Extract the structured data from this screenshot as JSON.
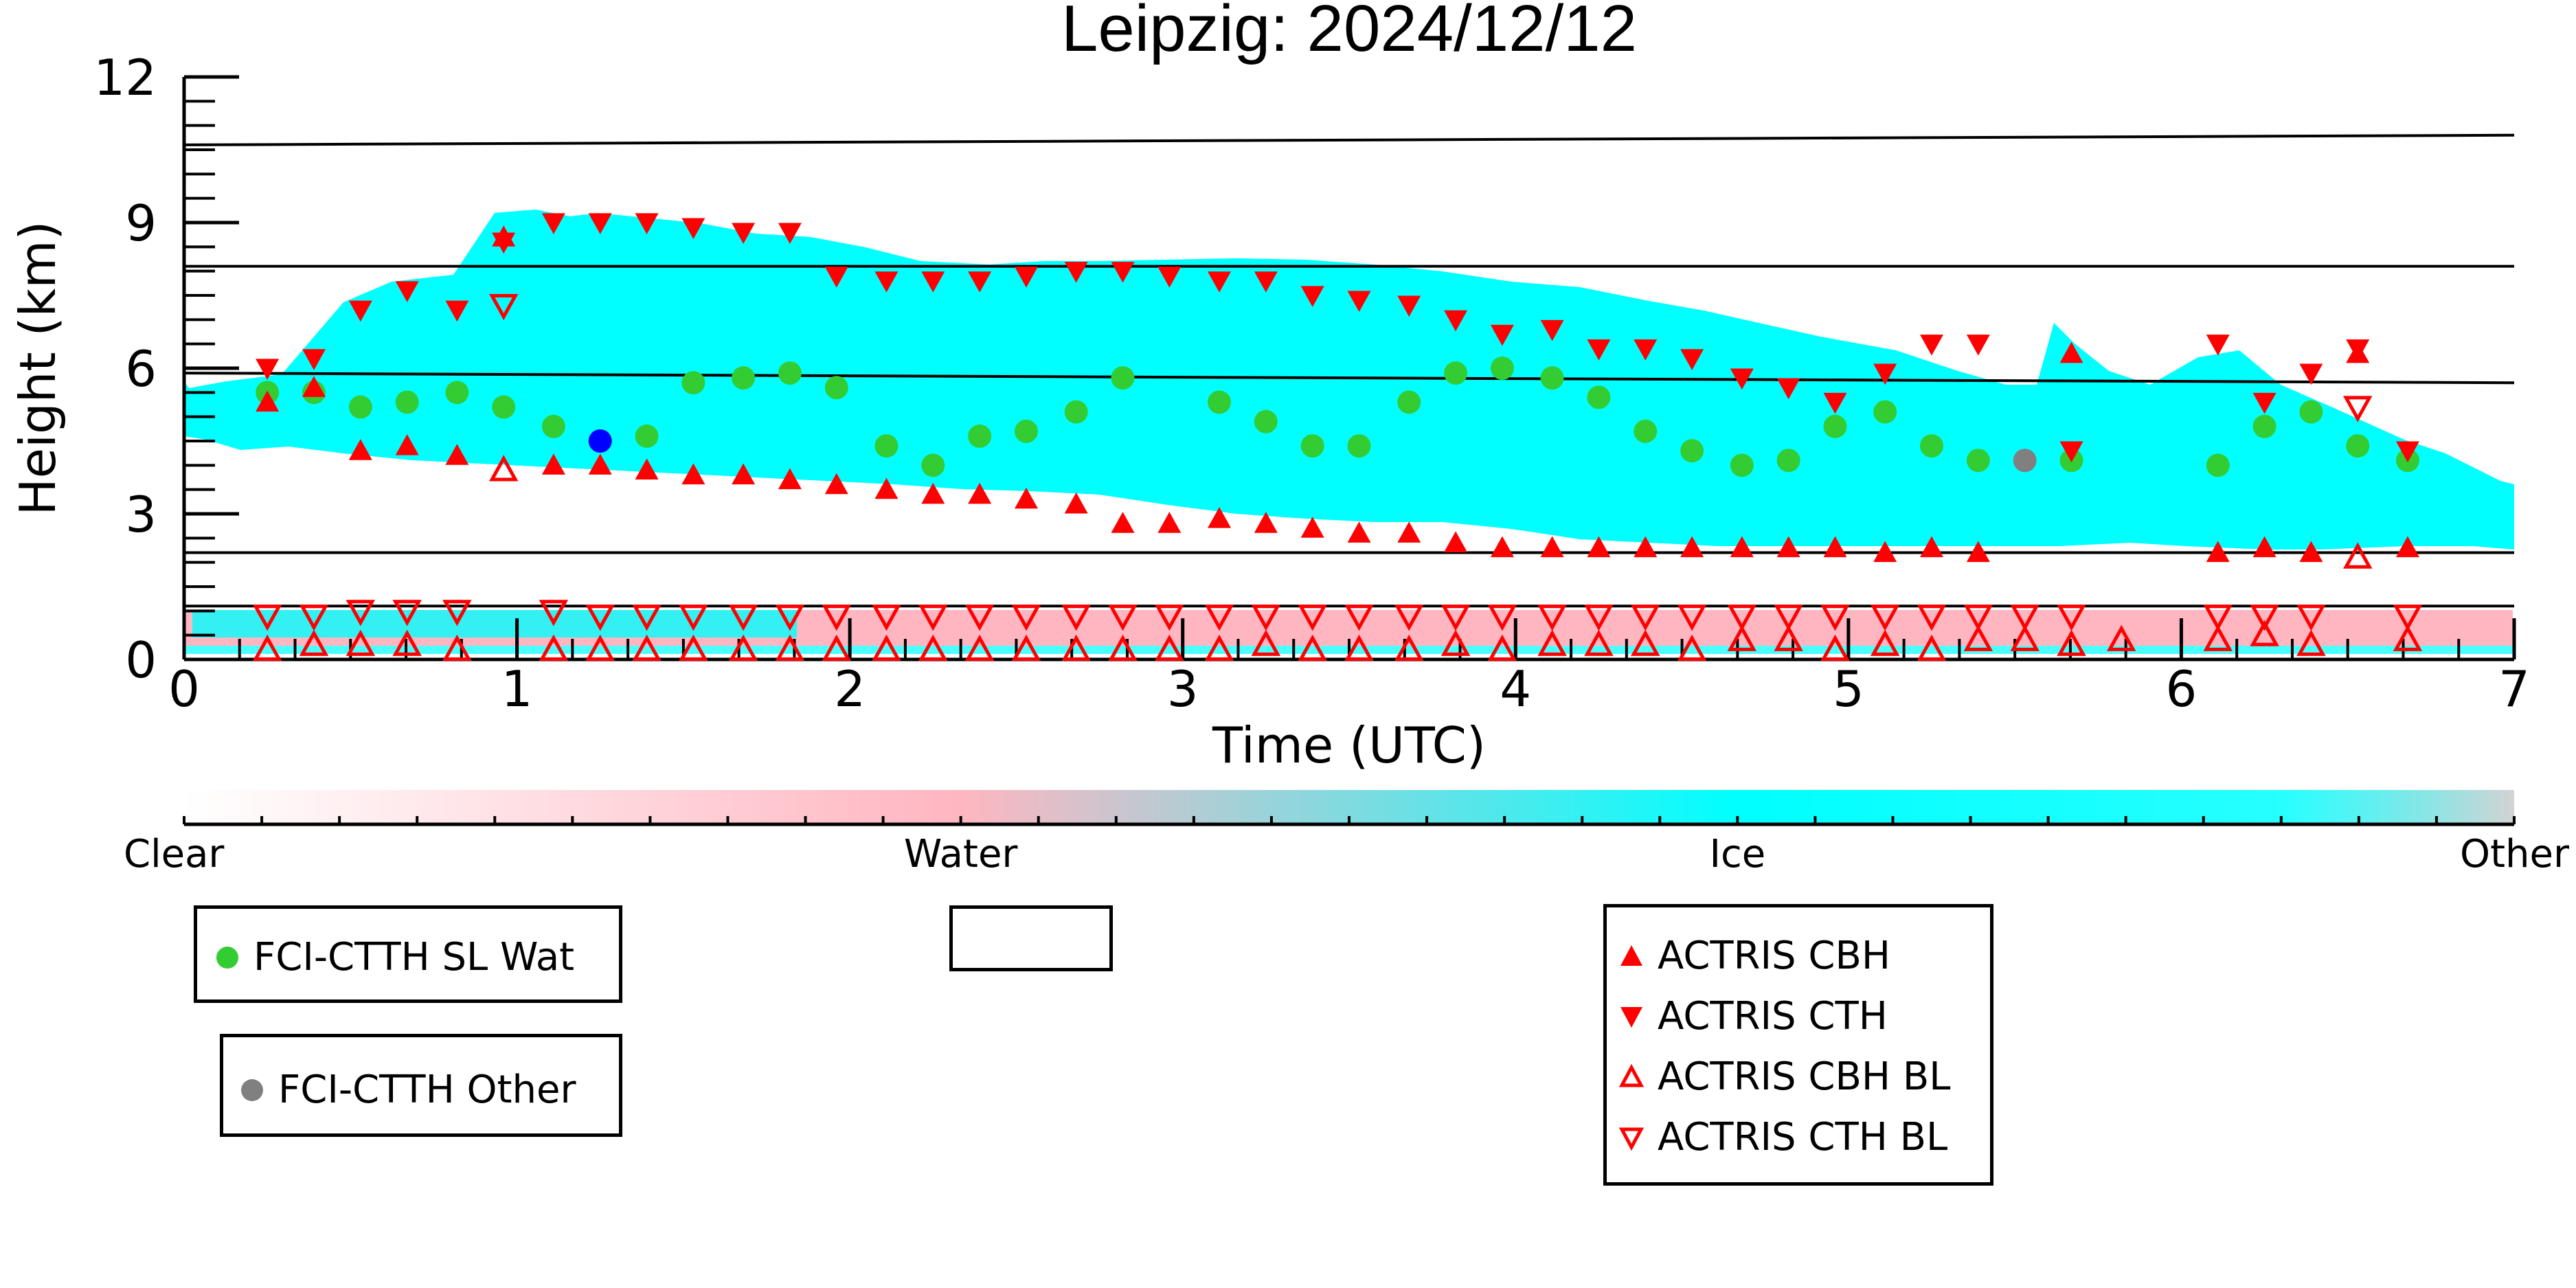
{
  "chart_data": {
    "type": "scatter",
    "title": "Leipzig: 2024/12/12",
    "xlabel": "Time (UTC)",
    "ylabel": "Height (km)",
    "xlim": [
      0,
      7
    ],
    "ylim": [
      0,
      12
    ],
    "x_ticks": [
      "0",
      "1",
      "2",
      "3",
      "4",
      "5",
      "6",
      "7"
    ],
    "y_ticks": [
      "0",
      "3",
      "6",
      "9",
      "12"
    ],
    "colorbar": {
      "labels": [
        "Clear",
        "Water",
        "Ice",
        "Other"
      ],
      "colors": [
        "#ffffff",
        "#ffb6c1",
        "#00ffff",
        "#d3d3d3"
      ]
    },
    "reference_lines": [
      {
        "values": [
          10.6,
          10.8
        ]
      },
      {
        "values": [
          8.1,
          8.1
        ]
      },
      {
        "values": [
          5.9,
          5.7
        ]
      },
      {
        "values": [
          2.2,
          2.2
        ]
      },
      {
        "values": [
          1.1,
          1.1
        ]
      }
    ],
    "series": [
      {
        "name": "FCI-CTTH SL Wat",
        "marker": "circle",
        "color": "#33cc33",
        "x": [
          0.25,
          0.39,
          0.53,
          0.67,
          0.82,
          0.96,
          1.11,
          1.39,
          1.53,
          1.68,
          1.82,
          1.96,
          2.11,
          2.25,
          2.39,
          2.53,
          2.68,
          2.82,
          3.11,
          3.25,
          3.39,
          3.53,
          3.68,
          3.82,
          3.96,
          4.11,
          4.25,
          4.39,
          4.53,
          4.68,
          4.82,
          4.96,
          5.11,
          5.25,
          5.39,
          5.67,
          6.11,
          6.25,
          6.39,
          6.53,
          6.68
        ],
        "y": [
          5.5,
          5.5,
          5.2,
          5.3,
          5.5,
          5.2,
          4.8,
          4.6,
          5.7,
          5.8,
          5.9,
          5.6,
          4.4,
          4.0,
          4.6,
          4.7,
          5.1,
          5.8,
          5.3,
          4.9,
          4.4,
          4.4,
          5.3,
          5.9,
          6.0,
          5.8,
          5.4,
          4.7,
          4.3,
          4.0,
          4.1,
          4.8,
          5.1,
          4.4,
          4.1,
          4.1,
          4.0,
          4.8,
          5.1,
          4.4,
          4.1
        ]
      },
      {
        "name": "",
        "marker": "circle",
        "color": "#0000ff",
        "x": [
          1.25
        ],
        "y": [
          4.5
        ]
      },
      {
        "name": "FCI-CTTH Other",
        "marker": "circle",
        "color": "#808080",
        "x": [
          5.53
        ],
        "y": [
          4.1
        ]
      },
      {
        "name": "ACTRIS CBH",
        "marker": "triangle-up",
        "color": "#ff0000",
        "x": [
          0.25,
          0.39,
          0.53,
          0.67,
          0.82,
          0.96,
          1.11,
          1.25,
          1.39,
          1.53,
          1.68,
          1.82,
          1.96,
          2.11,
          2.25,
          2.39,
          2.53,
          2.68,
          2.82,
          2.96,
          3.11,
          3.25,
          3.39,
          3.53,
          3.68,
          3.82,
          3.96,
          4.11,
          4.25,
          4.39,
          4.53,
          4.68,
          4.82,
          4.96,
          5.11,
          5.25,
          5.39,
          5.67,
          6.11,
          6.25,
          6.39,
          6.53,
          6.68
        ],
        "y": [
          5.3,
          5.6,
          4.3,
          4.4,
          4.2,
          8.7,
          4.0,
          4.0,
          3.9,
          3.8,
          3.8,
          3.7,
          3.6,
          3.5,
          3.4,
          3.4,
          3.3,
          3.2,
          2.8,
          2.8,
          2.9,
          2.8,
          2.7,
          2.6,
          2.6,
          2.4,
          2.3,
          2.3,
          2.3,
          2.3,
          2.3,
          2.3,
          2.3,
          2.3,
          2.2,
          2.3,
          2.2,
          6.3,
          2.2,
          2.3,
          2.2,
          6.3,
          2.3
        ]
      },
      {
        "name": "ACTRIS CTH",
        "marker": "triangle-down",
        "color": "#ff0000",
        "x": [
          0.25,
          0.39,
          0.53,
          0.67,
          0.82,
          0.96,
          1.11,
          1.25,
          1.39,
          1.53,
          1.68,
          1.82,
          1.96,
          2.11,
          2.25,
          2.39,
          2.53,
          2.68,
          2.82,
          2.96,
          3.11,
          3.25,
          3.39,
          3.53,
          3.68,
          3.82,
          3.96,
          4.11,
          4.25,
          4.39,
          4.53,
          4.68,
          4.82,
          4.96,
          5.11,
          5.25,
          5.39,
          5.67,
          6.11,
          6.25,
          6.39,
          6.53,
          6.68
        ],
        "y": [
          6.0,
          6.2,
          7.2,
          7.6,
          7.2,
          8.6,
          9.0,
          9.0,
          9.0,
          8.9,
          8.8,
          8.8,
          7.9,
          7.8,
          7.8,
          7.8,
          7.9,
          8.0,
          8.0,
          7.9,
          7.8,
          7.8,
          7.5,
          7.4,
          7.3,
          7.0,
          6.7,
          6.8,
          6.4,
          6.4,
          6.2,
          5.8,
          5.6,
          5.3,
          5.9,
          6.5,
          6.5,
          4.3,
          6.5,
          5.3,
          5.9,
          6.4,
          4.3
        ]
      },
      {
        "name": "ACTRIS CBH BL",
        "marker": "triangle-up-open",
        "color": "#ff0000",
        "x": [
          0.25,
          0.39,
          0.53,
          0.67,
          0.82,
          0.96,
          1.11,
          1.25,
          1.39,
          1.53,
          1.68,
          1.82,
          1.96,
          2.11,
          2.25,
          2.39,
          2.53,
          2.68,
          2.82,
          2.96,
          3.11,
          3.25,
          3.39,
          3.53,
          3.68,
          3.82,
          3.96,
          4.11,
          4.25,
          4.39,
          4.53,
          4.68,
          4.82,
          4.96,
          5.11,
          5.25,
          5.39,
          5.53,
          5.67,
          5.82,
          6.11,
          6.25,
          6.39,
          6.53,
          6.68
        ],
        "y": [
          0.2,
          0.3,
          0.3,
          0.3,
          0.2,
          3.9,
          0.2,
          0.2,
          0.2,
          0.2,
          0.2,
          0.2,
          0.2,
          0.2,
          0.2,
          0.2,
          0.2,
          0.2,
          0.2,
          0.2,
          0.2,
          0.3,
          0.2,
          0.2,
          0.2,
          0.3,
          0.2,
          0.3,
          0.3,
          0.3,
          0.2,
          0.4,
          0.4,
          0.2,
          0.3,
          0.2,
          0.4,
          0.4,
          0.3,
          0.4,
          0.4,
          0.5,
          0.3,
          2.1,
          0.4
        ]
      },
      {
        "name": "ACTRIS CTH BL",
        "marker": "triangle-down-open",
        "color": "#ff0000",
        "x": [
          0.25,
          0.39,
          0.53,
          0.67,
          0.82,
          0.96,
          1.11,
          1.25,
          1.39,
          1.53,
          1.68,
          1.82,
          1.96,
          2.11,
          2.25,
          2.39,
          2.53,
          2.68,
          2.82,
          2.96,
          3.11,
          3.25,
          3.39,
          3.53,
          3.68,
          3.82,
          3.96,
          4.11,
          4.25,
          4.39,
          4.53,
          4.68,
          4.82,
          4.96,
          5.11,
          5.25,
          5.39,
          5.53,
          5.67,
          6.11,
          6.25,
          6.39,
          6.53,
          6.68
        ],
        "y": [
          0.9,
          0.9,
          1.0,
          1.0,
          1.0,
          7.3,
          1.0,
          0.9,
          0.9,
          0.9,
          0.9,
          0.9,
          0.9,
          0.9,
          0.9,
          0.9,
          0.9,
          0.9,
          0.9,
          0.9,
          0.9,
          0.9,
          0.9,
          0.9,
          0.9,
          0.9,
          0.9,
          0.9,
          0.9,
          0.9,
          0.9,
          0.9,
          0.9,
          0.9,
          0.9,
          0.9,
          0.9,
          0.9,
          0.9,
          0.9,
          0.9,
          0.9,
          5.2,
          0.9
        ]
      }
    ],
    "legend_groups": [
      {
        "entries": [
          "FCI-CTTH SL Wat"
        ]
      },
      {
        "entries": [
          "FCI-CTTH Other"
        ]
      },
      {
        "entries": []
      },
      {
        "entries": [
          "ACTRIS CBH",
          "ACTRIS CTH",
          "ACTRIS CBH BL",
          "ACTRIS CTH BL"
        ]
      }
    ]
  }
}
